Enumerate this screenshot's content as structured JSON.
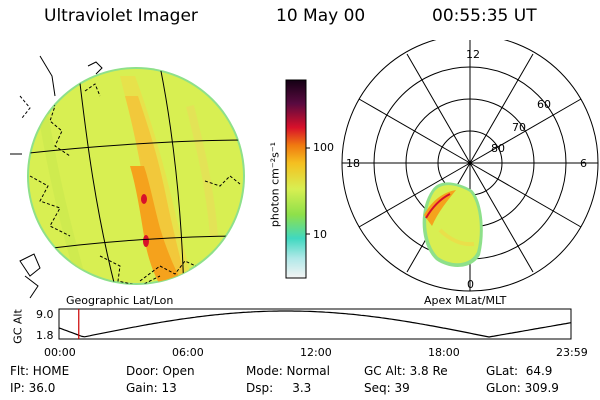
{
  "header": {
    "title": "Ultraviolet Imager",
    "date": "10 May 00",
    "time": "00:55:35 UT"
  },
  "colorbar": {
    "unit_label": "photon cm⁻²s⁻¹",
    "ticks": [
      "100",
      "10"
    ],
    "scale": "log"
  },
  "geo_panel": {
    "caption": "Geographic Lat/Lon"
  },
  "polar_panel": {
    "caption": "Apex MLat/MLT",
    "mlt_labels": [
      "12",
      "18",
      "6",
      "0"
    ],
    "lat_labels": [
      "60",
      "70",
      "80"
    ]
  },
  "altitude_strip": {
    "axis_label": "GC Alt",
    "y_ticks": [
      "9.0",
      "1.8"
    ],
    "x_ticks": [
      "00:00",
      "06:00",
      "12:00",
      "18:00",
      "23:59"
    ],
    "marker_time": "00:55:35",
    "line_color": "#000000",
    "marker_color": "#cc0000"
  },
  "info": {
    "row1": [
      {
        "key": "flt",
        "text": "Flt: HOME"
      },
      {
        "key": "door",
        "text": "Door: Open"
      },
      {
        "key": "mode",
        "text": "Mode: Normal"
      },
      {
        "key": "gcalt",
        "text": "GC Alt: 3.8 Re"
      },
      {
        "key": "glat",
        "text": "GLat:  64.9"
      }
    ],
    "row2": [
      {
        "key": "ip",
        "text": "IP: 36.0"
      },
      {
        "key": "gain",
        "text": "Gain: 13"
      },
      {
        "key": "dsp",
        "text": "Dsp:     3.3"
      },
      {
        "key": "seq",
        "text": "Seq: 39"
      },
      {
        "key": "glon",
        "text": "GLon: 309.9"
      }
    ]
  },
  "colors": {
    "disk_base": "#d8ef52",
    "disk_edge": "#8ee08a",
    "aurora_orange": "#f5a21c",
    "aurora_red": "#d8102a"
  }
}
